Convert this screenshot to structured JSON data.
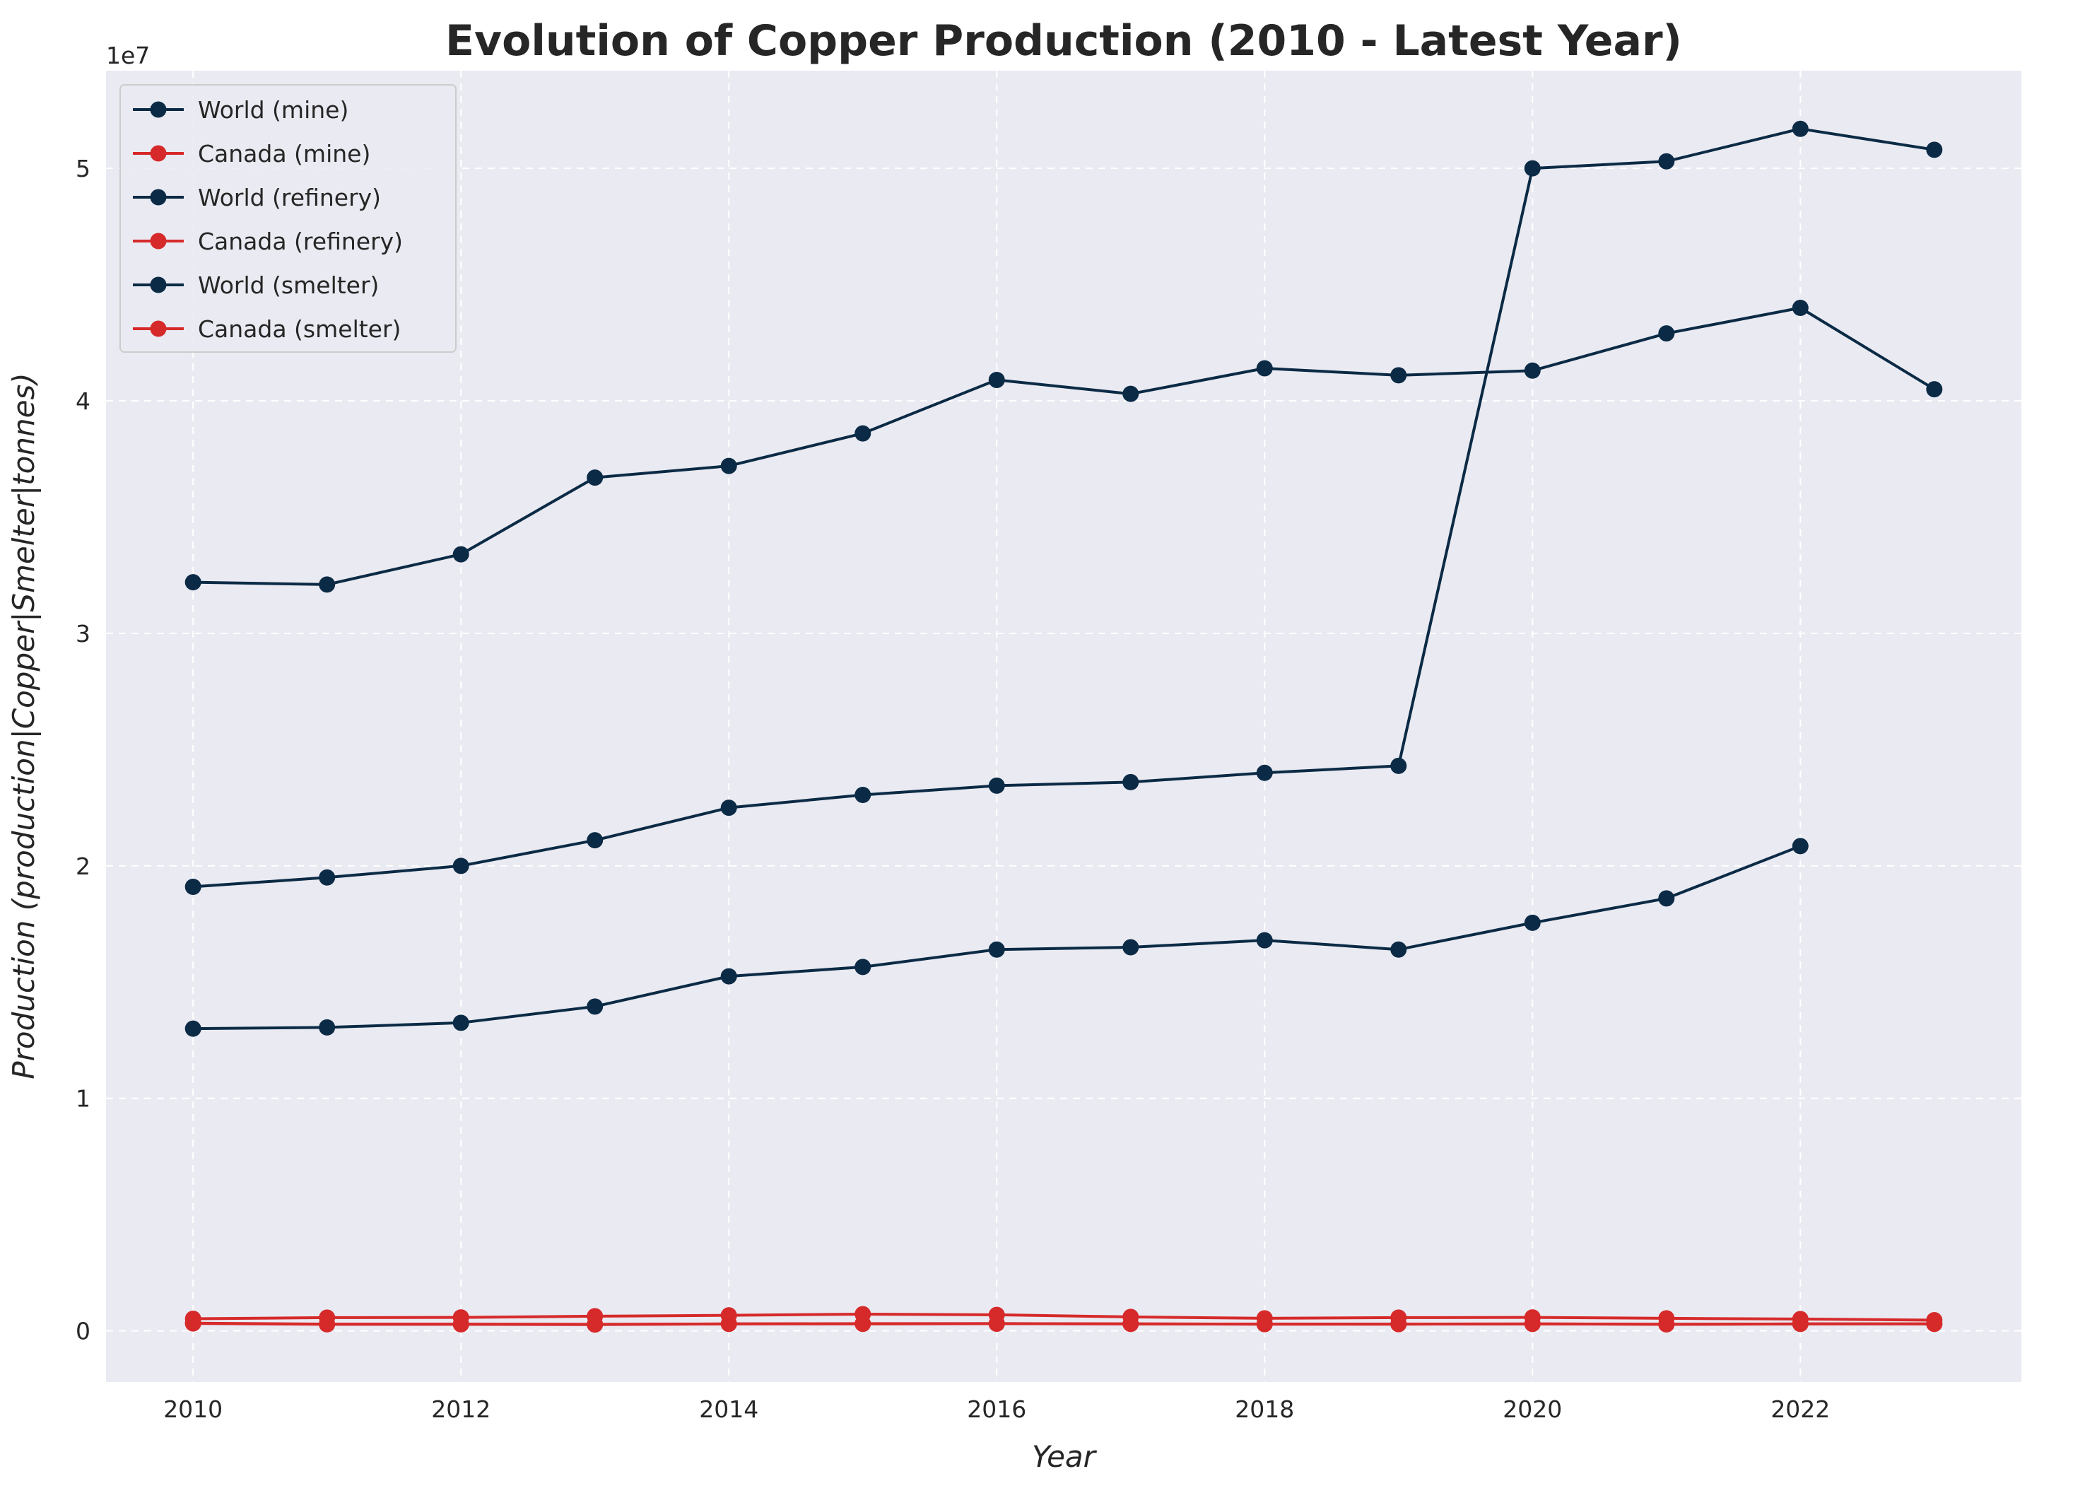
{
  "chart_data": {
    "type": "line",
    "title": "Evolution of Copper Production (2010 - Latest Year)",
    "xlabel": "Year",
    "ylabel": "Production (production|Copper|Smelter|tonnes)",
    "y_offset_label": "1e7",
    "xlim": [
      2009.35,
      2023.65
    ],
    "ylim": [
      -2200000,
      54200000
    ],
    "x_ticks": [
      2010,
      2012,
      2014,
      2016,
      2018,
      2020,
      2022
    ],
    "y_ticks": [
      0,
      10000000,
      20000000,
      30000000,
      40000000,
      50000000
    ],
    "y_tick_labels": [
      "0",
      "1",
      "2",
      "3",
      "4",
      "5"
    ],
    "grid": true,
    "legend_position": "top-left",
    "colors": {
      "world": "#0b2a45",
      "canada": "#d62a2a",
      "plot_bg": "#eaeaf2",
      "grid": "#ffffff"
    },
    "series": [
      {
        "name": "World (mine)",
        "color": "#0b2a45",
        "x": [
          2010,
          2011,
          2012,
          2013,
          2014,
          2015,
          2016,
          2017,
          2018,
          2019,
          2020,
          2021,
          2022
        ],
        "y": [
          13000000,
          13050000,
          13250000,
          13950000,
          15250000,
          15650000,
          16400000,
          16500000,
          16800000,
          16400000,
          17550000,
          18600000,
          20850000
        ]
      },
      {
        "name": "Canada (mine)",
        "color": "#d62a2a",
        "x": [
          2010,
          2011,
          2012,
          2013,
          2014,
          2015,
          2016,
          2017,
          2018,
          2019,
          2020,
          2021,
          2022,
          2023
        ],
        "y": [
          520000,
          570000,
          580000,
          630000,
          670000,
          720000,
          690000,
          600000,
          540000,
          570000,
          580000,
          540000,
          510000,
          460000
        ]
      },
      {
        "name": "World (refinery)",
        "color": "#0b2a45",
        "x": [
          2010,
          2011,
          2012,
          2013,
          2014,
          2015,
          2016,
          2017,
          2018,
          2019,
          2020,
          2021,
          2022,
          2023
        ],
        "y": [
          19100000,
          19500000,
          20000000,
          21100000,
          22500000,
          23050000,
          23450000,
          23600000,
          24000000,
          24300000,
          50000000,
          50300000,
          51700000,
          50800000
        ]
      },
      {
        "name": "Canada (refinery)",
        "color": "#d62a2a",
        "x": [
          2010,
          2011,
          2012,
          2013,
          2014,
          2015,
          2016,
          2017,
          2018,
          2019,
          2020,
          2021,
          2022,
          2023
        ],
        "y": [
          320000,
          280000,
          280000,
          270000,
          300000,
          300000,
          310000,
          300000,
          290000,
          290000,
          300000,
          280000,
          300000,
          300000
        ]
      },
      {
        "name": "World (smelter)",
        "color": "#0b2a45",
        "x": [
          2010,
          2011,
          2012,
          2013,
          2014,
          2015,
          2016,
          2017,
          2018,
          2019,
          2020,
          2021,
          2022,
          2023
        ],
        "y": [
          32200000,
          32100000,
          33400000,
          36700000,
          37200000,
          38600000,
          40900000,
          40300000,
          41400000,
          41100000,
          41300000,
          42900000,
          44000000,
          40500000
        ]
      },
      {
        "name": "Canada (smelter)",
        "color": "#d62a2a",
        "x": [
          2010,
          2011,
          2012,
          2013,
          2014,
          2015,
          2016,
          2017,
          2018,
          2019,
          2020,
          2021,
          2022,
          2023
        ],
        "y": [
          330000,
          290000,
          290000,
          280000,
          300000,
          310000,
          310000,
          300000,
          290000,
          290000,
          300000,
          280000,
          300000,
          300000
        ]
      }
    ]
  }
}
